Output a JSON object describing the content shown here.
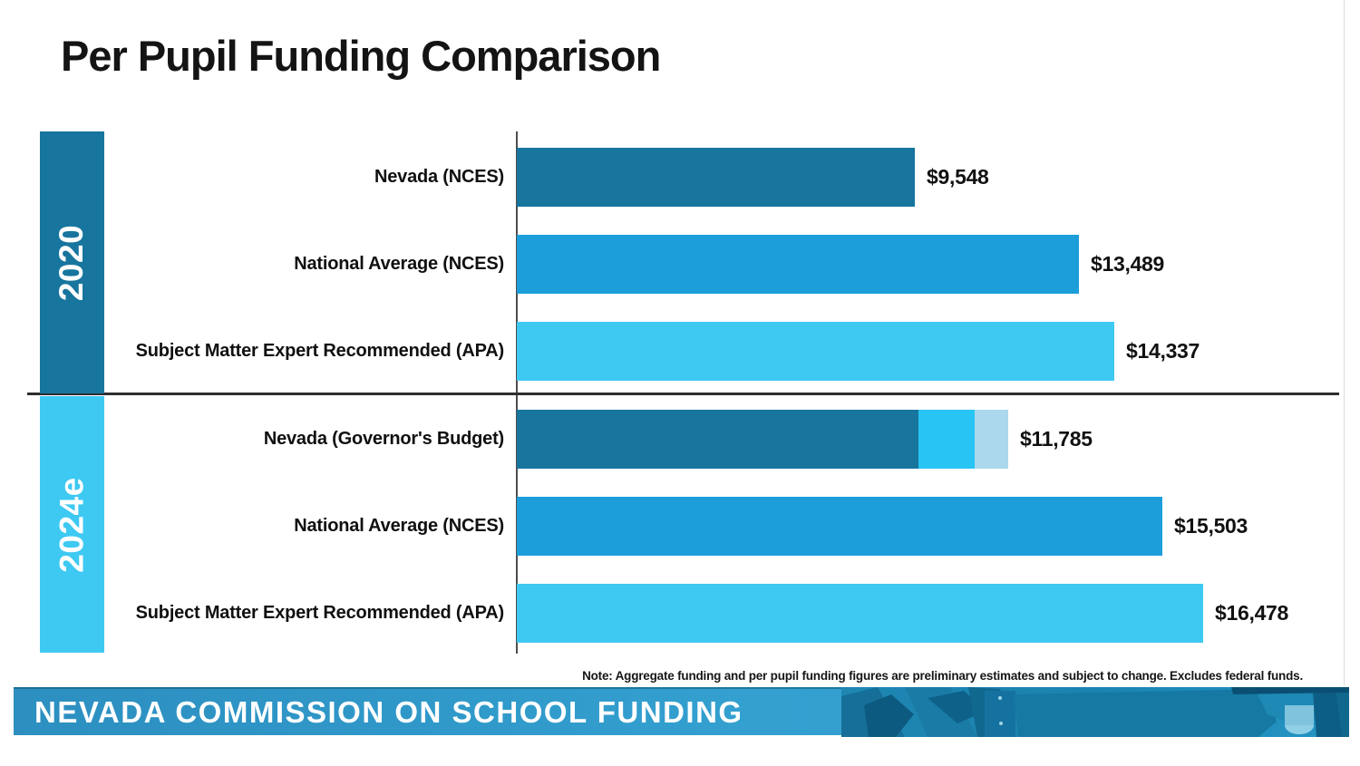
{
  "slide": {
    "title": "Per Pupil Funding Comparison",
    "note": "Note: Aggregate funding and per pupil funding figures are preliminary estimates and subject to change. Excludes federal funds."
  },
  "footer": {
    "banner_text": "NEVADA COMMISSION ON SCHOOL FUNDING",
    "banner_color": "#2e92c4"
  },
  "colors": {
    "nevada_dark_teal": "#17759e",
    "national_average_blue": "#1c9edb",
    "apa_light_blue": "#3ec9f2",
    "budget_increment_cyan": "#27c4f4",
    "budget_increment_pale": "#abd8ec",
    "divider": "#2e2e2e",
    "axis": "#4d4d4d",
    "title_text": "#141414",
    "sidebar_text": "#ffffff"
  },
  "chart_data": {
    "type": "bar",
    "orientation": "horizontal",
    "title": "Per Pupil Funding Comparison",
    "xlim": [
      0,
      16478
    ],
    "grid": false,
    "legend": false,
    "value_prefix": "$",
    "groups": [
      {
        "label": "2020",
        "sidebar_color": "#17759e",
        "rows": [
          {
            "category": "Nevada (NCES)",
            "value": 9548,
            "value_label": "$9,548",
            "color": "#17759e"
          },
          {
            "category": "National Average (NCES)",
            "value": 13489,
            "value_label": "$13,489",
            "color": "#1c9edb"
          },
          {
            "category": "Subject Matter Expert Recommended (APA)",
            "value": 14337,
            "value_label": "$14,337",
            "color": "#3ec9f2"
          }
        ]
      },
      {
        "label": "2024e",
        "sidebar_color": "#3ec9f2",
        "rows": [
          {
            "category": "Nevada (Governor's Budget)",
            "value": 11785,
            "value_label": "$11,785",
            "segments_estimated": [
              {
                "value": 9640,
                "color": "#17759e"
              },
              {
                "value": 1345,
                "color": "#27c4f4"
              },
              {
                "value": 800,
                "color": "#abd8ec"
              }
            ]
          },
          {
            "category": "National Average (NCES)",
            "value": 15503,
            "value_label": "$15,503",
            "color": "#1c9edb"
          },
          {
            "category": "Subject Matter Expert Recommended (APA)",
            "value": 16478,
            "value_label": "$16,478",
            "color": "#3ec9f2"
          }
        ]
      }
    ]
  }
}
